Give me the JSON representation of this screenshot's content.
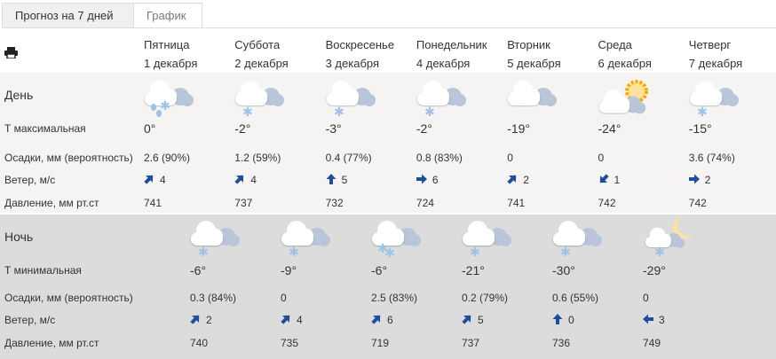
{
  "tabs": [
    {
      "label": "Прогноз на 7 дней",
      "active": true
    },
    {
      "label": "График",
      "active": false
    }
  ],
  "print_icon": "printer-icon",
  "days": [
    {
      "weekday": "Пятница",
      "date": "1 декабря"
    },
    {
      "weekday": "Суббота",
      "date": "2 декабря"
    },
    {
      "weekday": "Воскресенье",
      "date": "3 декабря"
    },
    {
      "weekday": "Понедельник",
      "date": "4 декабря"
    },
    {
      "weekday": "Вторник",
      "date": "5 декабря"
    },
    {
      "weekday": "Среда",
      "date": "6 декабря"
    },
    {
      "weekday": "Четверг",
      "date": "7 декабря"
    }
  ],
  "day": {
    "title": "День",
    "labels": {
      "temp": "Т максимальная",
      "precip": "Осадки, мм (вероятность)",
      "wind": "Ветер, м/с",
      "pressure": "Давление, мм рт.ст"
    },
    "items": [
      {
        "icon": "cloud-rain-snow",
        "temp": "0°",
        "precip": "2.6 (90%)",
        "wind_dir": "NE",
        "wind": "4",
        "pressure": "741"
      },
      {
        "icon": "cloud-snow",
        "temp": "-2°",
        "precip": "1.2 (59%)",
        "wind_dir": "NE",
        "wind": "4",
        "pressure": "737"
      },
      {
        "icon": "cloud-snow",
        "temp": "-3°",
        "precip": "0.4 (77%)",
        "wind_dir": "N",
        "wind": "5",
        "pressure": "732"
      },
      {
        "icon": "cloud-snow",
        "temp": "-2°",
        "precip": "0.8 (83%)",
        "wind_dir": "E",
        "wind": "6",
        "pressure": "724"
      },
      {
        "icon": "cloud",
        "temp": "-19°",
        "precip": "0",
        "wind_dir": "NE",
        "wind": "2",
        "pressure": "741"
      },
      {
        "icon": "sun-cloud",
        "temp": "-24°",
        "precip": "0",
        "wind_dir": "SW",
        "wind": "1",
        "pressure": "742"
      },
      {
        "icon": "cloud-snow",
        "temp": "-15°",
        "precip": "3.6 (74%)",
        "wind_dir": "E",
        "wind": "2",
        "pressure": "742"
      }
    ]
  },
  "night": {
    "title": "Ночь",
    "labels": {
      "temp": "Т минимальная",
      "precip": "Осадки, мм (вероятность)",
      "wind": "Ветер, м/с",
      "pressure": "Давление, мм рт.ст"
    },
    "items": [
      {
        "icon": "cloud-snow",
        "temp": "-6°",
        "precip": "0.3 (84%)",
        "wind_dir": "NE",
        "wind": "2",
        "pressure": "740"
      },
      {
        "icon": "cloud-snow",
        "temp": "-9°",
        "precip": "0",
        "wind_dir": "NE",
        "wind": "4",
        "pressure": "735"
      },
      {
        "icon": "cloud-snow-heavy",
        "temp": "-6°",
        "precip": "2.5 (83%)",
        "wind_dir": "NE",
        "wind": "6",
        "pressure": "719"
      },
      {
        "icon": "cloud-snow",
        "temp": "-21°",
        "precip": "0.2 (79%)",
        "wind_dir": "NE",
        "wind": "5",
        "pressure": "737"
      },
      {
        "icon": "cloud-snow",
        "temp": "-30°",
        "precip": "0.6 (55%)",
        "wind_dir": "N",
        "wind": "0",
        "pressure": "736"
      },
      {
        "icon": "moon-cloud-snow",
        "temp": "-29°",
        "precip": "0",
        "wind_dir": "W",
        "wind": "3",
        "pressure": "749"
      }
    ]
  },
  "colors": {
    "day_bg": "#f5f4f2",
    "night_bg": "#dcdcdc",
    "arrow": "#1f4e9c",
    "snow": "#9fc3e8",
    "sun": "#f5a800"
  }
}
